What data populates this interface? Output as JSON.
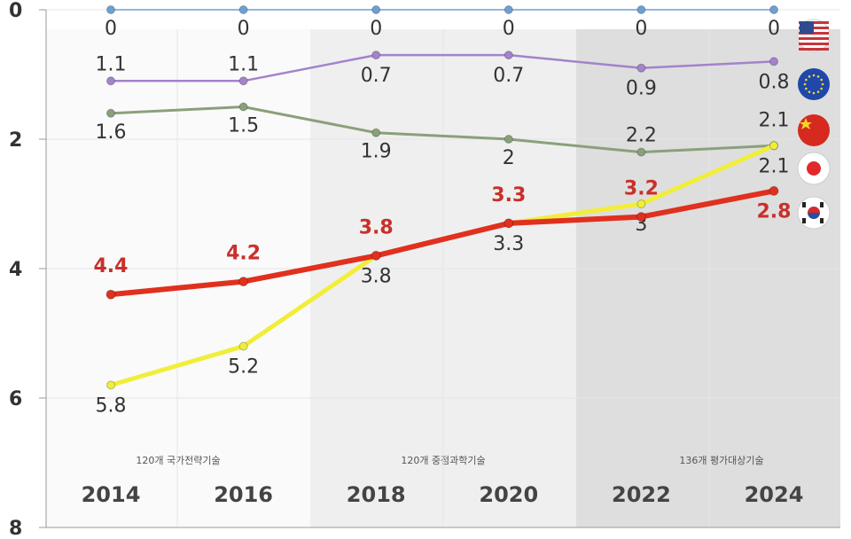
{
  "chart_data": {
    "type": "line",
    "x": [
      "2014",
      "2016",
      "2018",
      "2020",
      "2022",
      "2024"
    ],
    "ylim": [
      0,
      8
    ],
    "y_inverted": true,
    "yticks": [
      "0",
      "2",
      "4",
      "6",
      "8"
    ],
    "grid": true,
    "legend": "right (flag icons)",
    "bands": [
      {
        "label": "120개 국가전략기술",
        "from": "2014",
        "to": "2016",
        "color": "#fafafa"
      },
      {
        "label": "120개 중점과학기술",
        "from": "2018",
        "to": "2020",
        "color": "#efefef"
      },
      {
        "label": "136개 평가대상기술",
        "from": "2022",
        "to": "2024",
        "color": "#dedede"
      }
    ],
    "series": [
      {
        "flag": "usa-flag-icon",
        "color": "#6f9fd0",
        "values": [
          0,
          0,
          0,
          0,
          0,
          0
        ],
        "labels": [
          "0",
          "0",
          "0",
          "0",
          "0",
          "0"
        ],
        "label_pos": "below"
      },
      {
        "flag": "eu-flag-icon",
        "color": "#a383c9",
        "values": [
          1.1,
          1.1,
          0.7,
          0.7,
          0.9,
          0.8
        ],
        "labels": [
          "1.1",
          "1.1",
          "0.7",
          "0.7",
          "0.9",
          "0.8"
        ],
        "label_pos": "mixed"
      },
      {
        "flag": "china-flag-icon",
        "color": "#8aa07a",
        "values": [
          1.6,
          1.5,
          1.9,
          2,
          2.2,
          2.1
        ],
        "labels": [
          "1.6",
          "1.5",
          "1.9",
          "2",
          "2.2",
          "2.1"
        ],
        "label_pos": "below"
      },
      {
        "flag": "japan-flag-icon",
        "color": "#f1ee3a",
        "values": [
          5.8,
          5.2,
          3.8,
          3.3,
          3,
          2.1
        ],
        "labels": [
          "5.8",
          "5.2",
          "3.8",
          "3.3",
          "3",
          "2.1"
        ],
        "label_pos": "below"
      },
      {
        "flag": "korea-flag-icon",
        "color": "#e0301e",
        "values": [
          4.4,
          4.2,
          3.8,
          3.3,
          3.2,
          2.8
        ],
        "labels": [
          "4.4",
          "4.2",
          "3.8",
          "3.3",
          "3.2",
          "2.8"
        ],
        "label_pos": "above"
      }
    ]
  }
}
